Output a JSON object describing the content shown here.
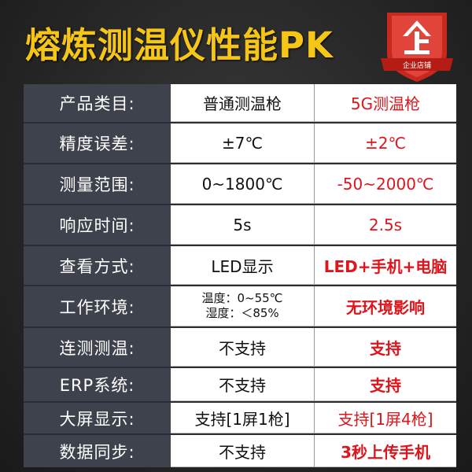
{
  "title": "熔炼测温仪性能PK",
  "badge": {
    "icon": "enterprise-shield-icon",
    "text": "企业店铺",
    "glyph": "企"
  },
  "colors": {
    "title": "#f5c518",
    "highlight": "#e0141b",
    "label_bg": "#3e424c"
  },
  "rows": [
    {
      "label": "产品类目:",
      "normal": "普通测温枪",
      "fiveg": "5G测温枪"
    },
    {
      "label": "精度误差:",
      "normal": "±7℃",
      "fiveg": "±2℃"
    },
    {
      "label": "测量范围:",
      "normal": "0~1800℃",
      "fiveg": "-50~2000℃"
    },
    {
      "label": "响应时间:",
      "normal": "5s",
      "fiveg": "2.5s"
    },
    {
      "label": "查看方式:",
      "normal": "LED显示",
      "fiveg": "LED+手机+电脑"
    },
    {
      "label": "工作环境:",
      "normal": "温度：0~55℃",
      "normal2": "湿度：＜85%",
      "fiveg": "无环境影响"
    },
    {
      "label": "连测测温:",
      "normal": "不支持",
      "fiveg": "支持"
    },
    {
      "label": "ERP系统:",
      "normal": "不支持",
      "fiveg": "支持"
    },
    {
      "label": "大屏显示:",
      "normal": "支持[1屏1枪]",
      "fiveg": "支持[1屏4枪]"
    },
    {
      "label": "数据同步:",
      "normal": "不支持",
      "fiveg": "3秒上传手机"
    }
  ]
}
